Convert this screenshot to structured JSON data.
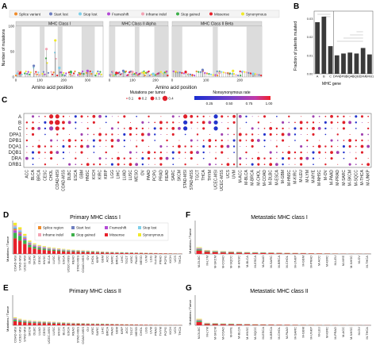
{
  "panels": {
    "A": "A",
    "B": "B",
    "C": "C",
    "D": "D",
    "E": "E",
    "F": "F",
    "G": "G"
  },
  "colors": {
    "splice": "#f08c2a",
    "start_lost": "#6e7fc0",
    "stop_lost": "#7fd0ea",
    "frameshift": "#b44ad6",
    "inframe_indel": "#f4a3b4",
    "stop_gained": "#3db04a",
    "missense": "#e8202a",
    "synonymous": "#f1ea2a",
    "bar": "#3a3a3a",
    "lowrate": "#2233cc",
    "midrate": "#a040b0",
    "highrate": "#e0202a",
    "mutsize": "#e0202a",
    "shade": "#dcdcdc"
  },
  "chart_data": [
    {
      "panel": "A",
      "type": "scatter",
      "legend": [
        "Splice variant",
        "Start lost",
        "Stop lost",
        "Frameshift",
        "Inframe indel",
        "Stop gained",
        "Missense",
        "Synonymous"
      ],
      "ylabel": "Number of mutations",
      "xlabel": "Amino acid position",
      "yticks": [
        "0",
        "50",
        "100"
      ],
      "ylim": [
        0,
        100
      ],
      "facets": [
        {
          "title": "MHC Class I",
          "xticks": [
            "0",
            "100",
            "200",
            "300"
          ],
          "xlim": [
            0,
            365
          ],
          "shaded": [
            [
              0,
              24
            ],
            [
              100,
              120
            ],
            [
              175,
              195
            ],
            [
              275,
              330
            ]
          ],
          "peaks": [
            [
              18,
              8
            ],
            [
              75,
              22
            ],
            [
              128,
              55
            ],
            [
              165,
              72
            ],
            [
              182,
              18
            ],
            [
              230,
              10
            ],
            [
              268,
              6
            ],
            [
              300,
              12
            ]
          ]
        },
        {
          "title": "MHC Class II Alpha",
          "xticks": [
            "0",
            "100",
            "200"
          ],
          "xlim": [
            0,
            255
          ],
          "shaded": [
            [
              0,
              25
            ],
            [
              110,
              130
            ],
            [
              195,
              255
            ]
          ],
          "peaks": [
            [
              30,
              8
            ],
            [
              60,
              12
            ],
            [
              100,
              10
            ],
            [
              150,
              8
            ],
            [
              190,
              6
            ]
          ]
        },
        {
          "title": "MHC Class II Beta",
          "xticks": [
            "0",
            "100",
            "200"
          ],
          "xlim": [
            0,
            265
          ],
          "shaded": [
            [
              0,
              30
            ],
            [
              120,
              135
            ],
            [
              220,
              265
            ]
          ],
          "peaks": [
            [
              40,
              10
            ],
            [
              90,
              14
            ],
            [
              140,
              8
            ],
            [
              180,
              12
            ],
            [
              240,
              6
            ]
          ]
        }
      ]
    },
    {
      "panel": "B",
      "type": "bar",
      "ylabel": "Fraction of patients mutated",
      "xlabel": "MHC gene",
      "categories": [
        "A",
        "B",
        "C",
        "DPA1",
        "DPB1",
        "DQA1",
        "DQB1",
        "DRA",
        "DRB1"
      ],
      "values": [
        0.028,
        0.031,
        0.015,
        0.01,
        0.011,
        0.0115,
        0.011,
        0.014,
        0.0105
      ],
      "yticks": [
        "0.00",
        "0.01",
        "0.02",
        "0.03"
      ],
      "ylim": [
        0,
        0.034
      ]
    },
    {
      "panel": "C",
      "type": "heatmap",
      "legend_size_title": "Mutations per tumor",
      "size_ticks": [
        "0.1",
        "0.2",
        "0.3",
        "0.4"
      ],
      "legend_color_title": "Nonsynonymous rate",
      "color_ticks": [
        "0.25",
        "0.50",
        "0.75",
        "1.00"
      ],
      "rows": [
        "A",
        "B",
        "C",
        "DPA1",
        "DPB1",
        "DQA1",
        "DQB1",
        "DRA",
        "DRB1"
      ],
      "columns": [
        "ACC",
        "BLCA",
        "BRCA",
        "CESC",
        "CHOL",
        "COAD-MSI",
        "COAD-MSS",
        "DLBC",
        "ESCA",
        "GBM",
        "HNSC",
        "KICH",
        "KIRC",
        "KIRP",
        "LGG",
        "LIHC",
        "LUAD",
        "LUSC",
        "MESO",
        "OV",
        "PAAD",
        "PCPG",
        "PRAD",
        "READ",
        "SARC",
        "SKCM",
        "STAD-MSI",
        "STAD-MSS",
        "TGCT",
        "THCA",
        "THYM",
        "UCEC-MSI",
        "UCEC-MSS",
        "UCS",
        "UVM",
        "M-ACC",
        "M-BLCA",
        "M-BRCA",
        "M-CHOL",
        "M-COAD",
        "M-DLBC",
        "M-ESCA",
        "M-GBM",
        "M-HNSC",
        "M-KIRC",
        "M-LEU",
        "M-LYM",
        "M-MYE",
        "M-NHSC",
        "M-OV",
        "M-PAAD",
        "M-PRAD",
        "M-SARC",
        "M-SKCM",
        "M-SQCC",
        "M-THCA",
        "M-UNKP"
      ]
    },
    {
      "panel": "D",
      "type": "bar",
      "title": "Primary MHC class I",
      "ylabel": "Mutations / Tumor",
      "legend": [
        "Splice region",
        "Start lost",
        "Frameshift",
        "Stop lost",
        "Inframe indel",
        "Stop gained",
        "Missense",
        "Synonymous"
      ],
      "categories": [
        "COAD-MSI",
        "STAD-MSI",
        "UCEC-MSI",
        "DLBC",
        "SKCM",
        "CESC",
        "HNSC",
        "BLCA",
        "LUSC",
        "LUAD",
        "ESCA",
        "UCEC-MSS",
        "READ",
        "STAD-MSS",
        "COAD-MSS",
        "OV",
        "CHOL",
        "KIRP",
        "GBM",
        "ACC",
        "SARC",
        "BRCA",
        "LIHC",
        "TGCT",
        "KIRC",
        "PAAD",
        "MESO",
        "UVM",
        "LGG",
        "THYM",
        "PRAD",
        "PCPG",
        "KICH",
        "UCS",
        "THCA"
      ],
      "values": [
        0.56,
        0.48,
        0.36,
        0.24,
        0.19,
        0.16,
        0.14,
        0.12,
        0.11,
        0.1,
        0.09,
        0.08,
        0.075,
        0.07,
        0.065,
        0.06,
        0.055,
        0.05,
        0.045,
        0.04,
        0.038,
        0.035,
        0.033,
        0.03,
        0.028,
        0.026,
        0.024,
        0.022,
        0.02,
        0.018,
        0.016,
        0.014,
        0.012,
        0.01,
        0.008
      ],
      "ylim": [
        0,
        0.6
      ]
    },
    {
      "panel": "E",
      "type": "bar",
      "title": "Primary MHC class II",
      "ylabel": "Mutations / Tumor",
      "categories": [
        "COAD-MSI",
        "UCEC-MSI",
        "STAD-MSI",
        "SKCM",
        "DLBC",
        "LUAD",
        "CESC",
        "UCEC-MSS",
        "LUSC",
        "HNSC",
        "BLCA",
        "ESCA",
        "READ",
        "STAD-MSS",
        "COAD-MSS",
        "OV",
        "KIRC",
        "SARC",
        "LIHC",
        "BRCA",
        "PAAD",
        "GBM",
        "KIRP",
        "ACC",
        "TGCT",
        "MESO",
        "CHOL",
        "LGG",
        "UVM",
        "PRAD",
        "THYM",
        "PCPG",
        "KICH",
        "UCS",
        "THCA"
      ],
      "values": [
        0.16,
        0.13,
        0.11,
        0.1,
        0.09,
        0.085,
        0.08,
        0.075,
        0.07,
        0.065,
        0.06,
        0.055,
        0.05,
        0.048,
        0.045,
        0.042,
        0.04,
        0.038,
        0.035,
        0.033,
        0.03,
        0.028,
        0.026,
        0.024,
        0.022,
        0.02,
        0.018,
        0.016,
        0.014,
        0.012,
        0.011,
        0.01,
        0.009,
        0.008,
        0.007
      ],
      "ylim": [
        0,
        0.6
      ]
    },
    {
      "panel": "F",
      "type": "bar",
      "title": "Metastatic MHC class I",
      "ylabel": "Mutations / Tumor",
      "categories": [
        "M-DLBC",
        "M-LYM",
        "M-SKCM",
        "M-COAD",
        "M-SQCC",
        "M-HNSC",
        "M-BLCA",
        "M-ESCA",
        "M-PAAD",
        "M-SARC",
        "M-BRCA",
        "M-CHOL",
        "M-UNKP",
        "M-GBM",
        "M-PRAD",
        "M-ACC",
        "M-KIRC",
        "M-LEU",
        "M-MYE",
        "M-NHSC",
        "M-OV",
        "M-THCA"
      ],
      "values": [
        0.12,
        0.07,
        0.06,
        0.05,
        0.045,
        0.04,
        0.036,
        0.033,
        0.03,
        0.027,
        0.024,
        0.022,
        0.02,
        0.018,
        0.016,
        0.014,
        0.012,
        0.01,
        0.008,
        0.007,
        0.006,
        0.005
      ],
      "ylim": [
        0,
        0.6
      ]
    },
    {
      "panel": "G",
      "type": "bar",
      "title": "Metastatic MHC class II",
      "ylabel": "Mutations / Tumor",
      "categories": [
        "M-DLBC",
        "M-LYM",
        "M-SKCM",
        "M-COAD",
        "M-MYE",
        "M-BLCA",
        "M-HNSC",
        "M-SQCC",
        "M-ESCA",
        "M-BRCA",
        "M-CHOL",
        "M-PAAD",
        "M-SARC",
        "M-GBM",
        "M-UNKP",
        "M-LEU",
        "M-KIRC",
        "M-PRAD",
        "M-ACC",
        "M-NHSC",
        "M-OV",
        "M-THCA"
      ],
      "values": [
        0.13,
        0.05,
        0.045,
        0.04,
        0.035,
        0.03,
        0.028,
        0.025,
        0.022,
        0.02,
        0.018,
        0.016,
        0.014,
        0.012,
        0.011,
        0.01,
        0.009,
        0.008,
        0.007,
        0.006,
        0.005,
        0.004
      ],
      "ylim": [
        0,
        0.6
      ]
    }
  ]
}
